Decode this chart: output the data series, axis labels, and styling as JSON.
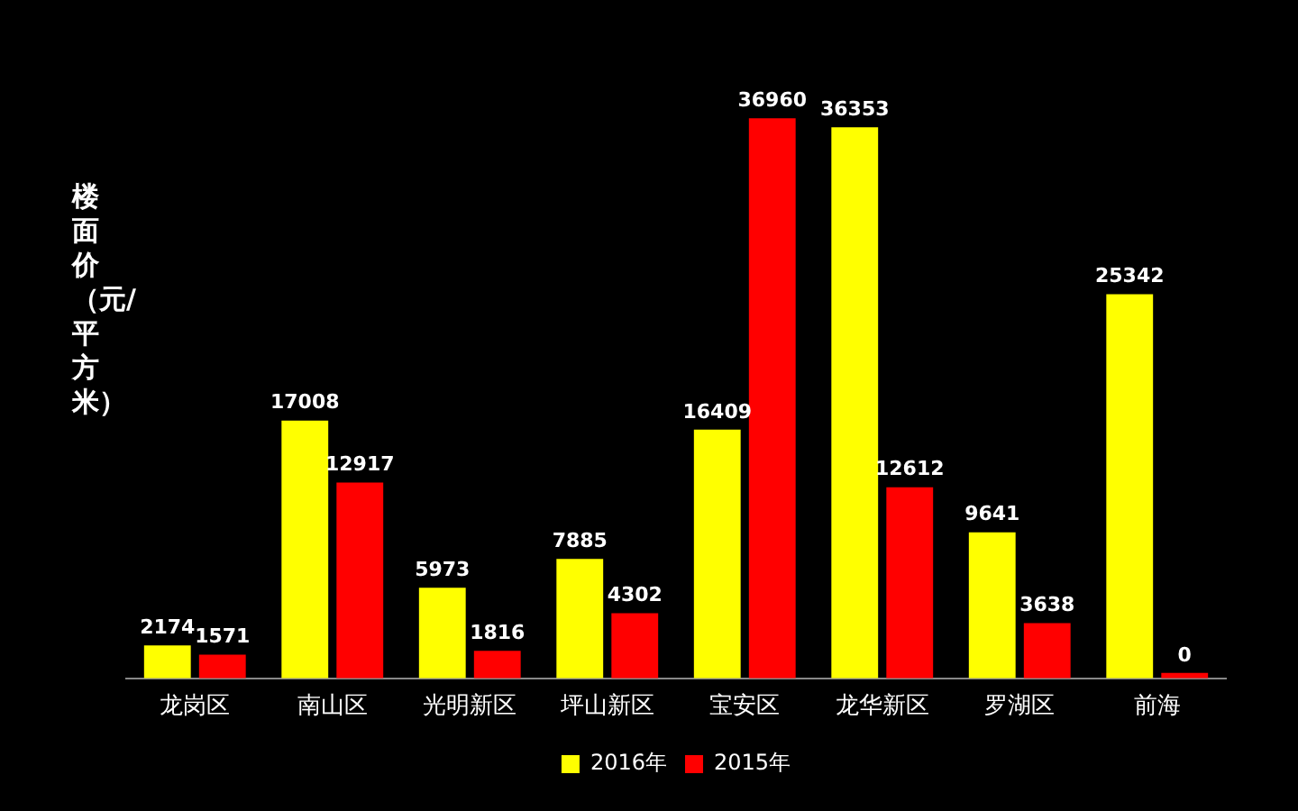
{
  "chart_data": {
    "type": "bar",
    "ylabel": "楼面价（元/平方米）",
    "categories": [
      "龙岗区",
      "南山区",
      "光明新区",
      "坪山新区",
      "宝安区",
      "龙华新区",
      "罗湖区",
      "前海"
    ],
    "series": [
      {
        "name": "2016年",
        "color": "#ffff00",
        "values": [
          2174,
          17008,
          5973,
          7885,
          16409,
          36353,
          9641,
          25342
        ]
      },
      {
        "name": "2015年",
        "color": "#ff0000",
        "values": [
          1571,
          12917,
          1816,
          4302,
          36960,
          12612,
          3638,
          0
        ]
      }
    ],
    "data_labels": true,
    "legend": "bottom"
  }
}
